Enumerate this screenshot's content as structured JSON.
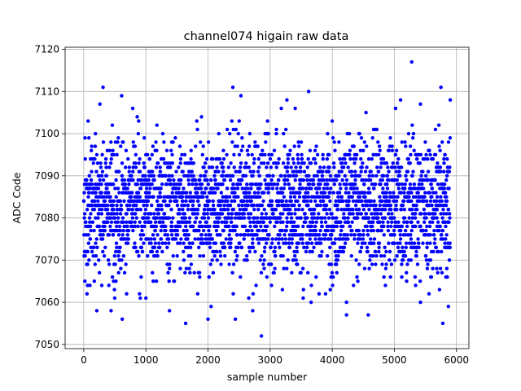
{
  "chart_data": {
    "type": "scatter",
    "title": "channel074 higain raw data",
    "xlabel": "sample number",
    "ylabel": "ADC Code",
    "xlim": [
      -300,
      6200
    ],
    "ylim": [
      7049,
      7120.5
    ],
    "x_ticks": [
      0,
      1000,
      2000,
      3000,
      4000,
      5000,
      6000
    ],
    "y_ticks": [
      7050,
      7060,
      7070,
      7080,
      7090,
      7100,
      7110,
      7120
    ],
    "grid": true,
    "marker_color": "#0000ff",
    "series": [
      {
        "n_samples": 5900,
        "baseline": 7083,
        "spread_sd": 8,
        "points": [
          {
            "x": 70,
            "y": 7103
          },
          {
            "x": 100,
            "y": 7064
          },
          {
            "x": 170,
            "y": 7065
          },
          {
            "x": 210,
            "y": 7058
          },
          {
            "x": 290,
            "y": 7064
          },
          {
            "x": 310,
            "y": 7111
          },
          {
            "x": 260,
            "y": 7107
          },
          {
            "x": 440,
            "y": 7058
          },
          {
            "x": 610,
            "y": 7109
          },
          {
            "x": 620,
            "y": 7056
          },
          {
            "x": 1000,
            "y": 7061
          },
          {
            "x": 1380,
            "y": 7058
          },
          {
            "x": 1640,
            "y": 7055
          },
          {
            "x": 2000,
            "y": 7056
          },
          {
            "x": 2050,
            "y": 7059
          },
          {
            "x": 2400,
            "y": 7111
          },
          {
            "x": 2530,
            "y": 7109
          },
          {
            "x": 2440,
            "y": 7056
          },
          {
            "x": 2720,
            "y": 7058
          },
          {
            "x": 2860,
            "y": 7052
          },
          {
            "x": 3180,
            "y": 7106
          },
          {
            "x": 3270,
            "y": 7108
          },
          {
            "x": 3620,
            "y": 7110
          },
          {
            "x": 3660,
            "y": 7060
          },
          {
            "x": 4230,
            "y": 7060
          },
          {
            "x": 4230,
            "y": 7057
          },
          {
            "x": 4580,
            "y": 7057
          },
          {
            "x": 5020,
            "y": 7106
          },
          {
            "x": 5100,
            "y": 7108
          },
          {
            "x": 5280,
            "y": 7117
          },
          {
            "x": 5420,
            "y": 7107
          },
          {
            "x": 5420,
            "y": 7060
          },
          {
            "x": 5750,
            "y": 7111
          },
          {
            "x": 5780,
            "y": 7055
          },
          {
            "x": 5870,
            "y": 7059
          },
          {
            "x": 5900,
            "y": 7108
          }
        ]
      }
    ]
  }
}
